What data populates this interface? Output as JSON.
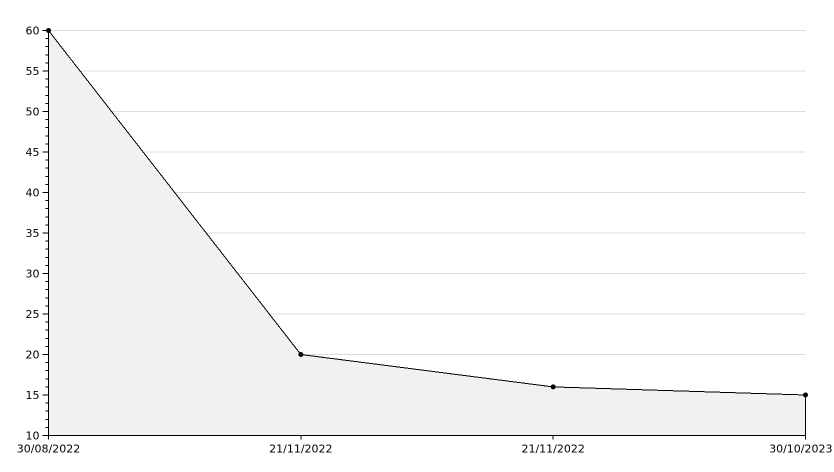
{
  "chart_data": {
    "type": "area",
    "title": "",
    "xlabel": "",
    "ylabel": "",
    "categories": [
      "30/08/2022",
      "21/11/2022",
      "21/11/2022",
      "30/10/2023"
    ],
    "values": [
      60,
      20,
      16,
      15
    ],
    "x_tick_labels": [
      "30/08/2022",
      "21/11/2022",
      "21/11/2022",
      "30/10/2023"
    ],
    "y_tick_labels": [
      "10",
      "15",
      "20",
      "25",
      "30",
      "35",
      "40",
      "45",
      "50",
      "55",
      "60"
    ],
    "ylim": [
      10,
      60
    ],
    "y_major_step": 5,
    "y_minor_step": 1,
    "grid": "horizontal-major",
    "legend": "none",
    "colors": {
      "background": "#ffffff",
      "fill": "#f1f1f1",
      "grid": "#dcdcdc",
      "line": "#000000",
      "marker": "#000000",
      "axis": "#000000",
      "text": "#000000"
    }
  }
}
